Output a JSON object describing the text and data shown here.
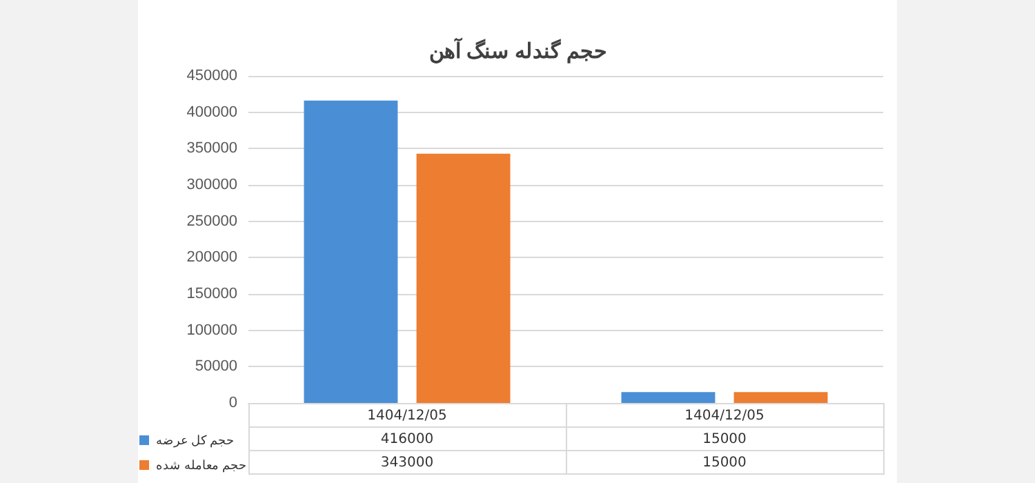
{
  "chart_data": {
    "type": "bar",
    "title": "حجم گندله سنگ آهن",
    "categories": [
      "1404/12/05",
      "1404/12/05"
    ],
    "series": [
      {
        "name": "حجم کل عرضه",
        "color": "#4a8fd6",
        "values": [
          416000,
          15000
        ]
      },
      {
        "name": "حجم معامله شده",
        "color": "#ed7d31",
        "values": [
          343000,
          15000
        ]
      }
    ],
    "ylim": [
      0,
      450000
    ],
    "yticks": [
      0,
      50000,
      100000,
      150000,
      200000,
      250000,
      300000,
      350000,
      400000,
      450000
    ],
    "grid": "y",
    "legend": "bottom left",
    "data_labels": true
  }
}
